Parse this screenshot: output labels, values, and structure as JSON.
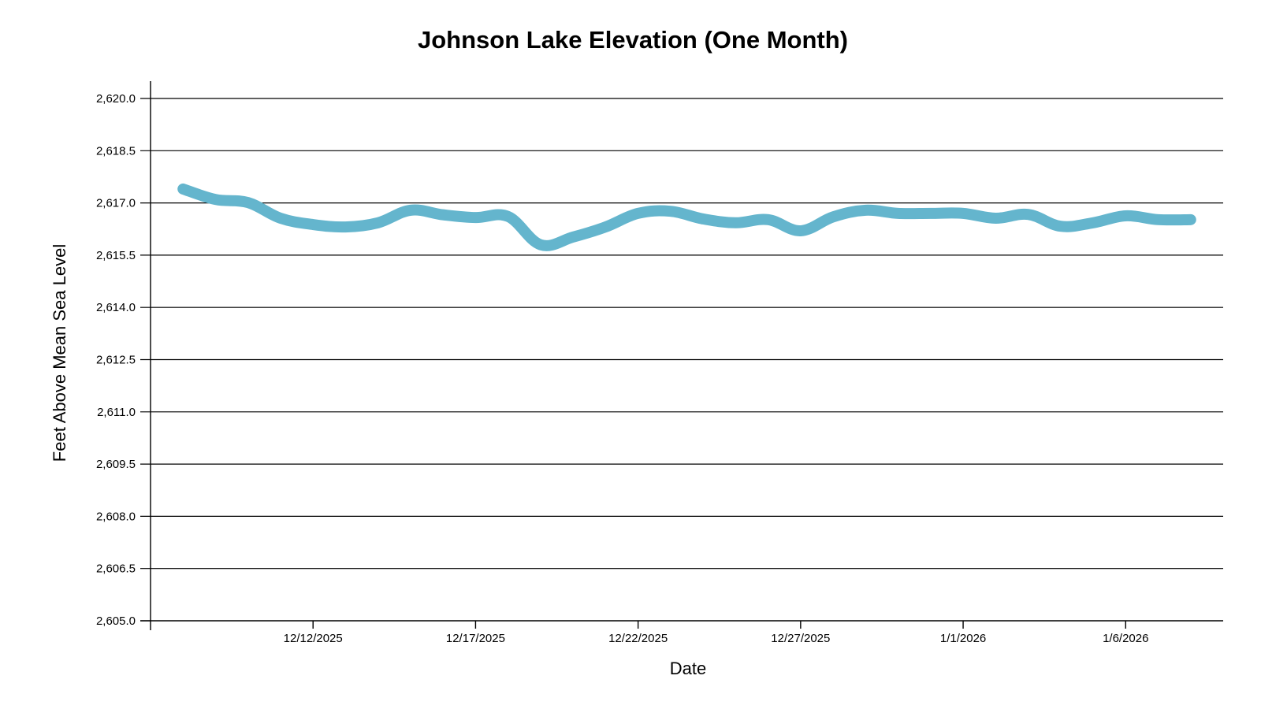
{
  "chart_data": {
    "type": "line",
    "title": "Johnson Lake Elevation (One Month)",
    "xlabel": "Date",
    "ylabel": "Feet Above Mean Sea Level",
    "ylim": [
      2605.0,
      2620.0
    ],
    "yticks": [
      2605.0,
      2606.5,
      2608.0,
      2609.5,
      2611.0,
      2612.5,
      2614.0,
      2615.5,
      2617.0,
      2618.5,
      2620.0
    ],
    "ytick_labels": [
      "2,605.0",
      "2,606.5",
      "2,608.0",
      "2,609.5",
      "2,611.0",
      "2,612.5",
      "2,614.0",
      "2,615.5",
      "2,617.0",
      "2,618.5",
      "2,620.0"
    ],
    "xlim": [
      "2025-12-07",
      "2026-01-09"
    ],
    "xticks": [
      "2025-12-12",
      "2025-12-17",
      "2025-12-22",
      "2025-12-27",
      "2026-01-01",
      "2026-01-06"
    ],
    "xtick_labels": [
      "12/12/2025",
      "12/17/2025",
      "12/22/2025",
      "12/27/2025",
      "1/1/2026",
      "1/6/2026"
    ],
    "grid": "horizontal",
    "legend": "none",
    "series": [
      {
        "name": "Elevation",
        "color": "#64b5cd",
        "x": [
          "2025-12-08",
          "2025-12-09",
          "2025-12-10",
          "2025-12-11",
          "2025-12-12",
          "2025-12-13",
          "2025-12-14",
          "2025-12-15",
          "2025-12-16",
          "2025-12-17",
          "2025-12-18",
          "2025-12-19",
          "2025-12-20",
          "2025-12-21",
          "2025-12-22",
          "2025-12-23",
          "2025-12-24",
          "2025-12-25",
          "2025-12-26",
          "2025-12-27",
          "2025-12-28",
          "2025-12-29",
          "2025-12-30",
          "2025-12-31",
          "2026-01-01",
          "2026-01-02",
          "2026-01-03",
          "2026-01-04",
          "2026-01-05",
          "2026-01-06",
          "2026-01-07",
          "2026-01-08"
        ],
        "values": [
          2617.4,
          2617.1,
          2617.01,
          2616.56,
          2616.38,
          2616.31,
          2616.43,
          2616.79,
          2616.66,
          2616.58,
          2616.61,
          2615.8,
          2616.02,
          2616.31,
          2616.7,
          2616.76,
          2616.54,
          2616.43,
          2616.52,
          2616.2,
          2616.6,
          2616.79,
          2616.7,
          2616.7,
          2616.7,
          2616.56,
          2616.67,
          2616.33,
          2616.43,
          2616.63,
          2616.52,
          2616.52
        ]
      }
    ]
  }
}
